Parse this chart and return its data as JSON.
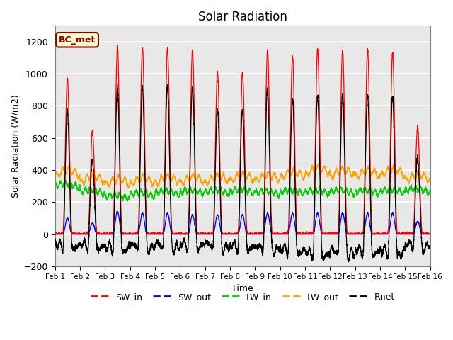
{
  "title": "Solar Radiation",
  "xlabel": "Time",
  "ylabel": "Solar Radiation (W/m2)",
  "ylim": [
    -200,
    1300
  ],
  "yticks": [
    -200,
    0,
    200,
    400,
    600,
    800,
    1000,
    1200
  ],
  "xlim": [
    0,
    15
  ],
  "xtick_labels": [
    "Feb 1",
    "Feb 2",
    "Feb 3",
    "Feb 4",
    "Feb 5",
    "Feb 6",
    "Feb 7",
    "Feb 8",
    "Feb 9",
    "Feb 10",
    "Feb 11",
    "Feb 12",
    "Feb 13",
    "Feb 14",
    "Feb 15",
    "Feb 16"
  ],
  "annotation_text": "BC_met",
  "annotation_color": "#8B0000",
  "annotation_bg": "#FFFACD",
  "colors": {
    "SW_in": "#FF0000",
    "SW_out": "#0000FF",
    "LW_in": "#00CC00",
    "LW_out": "#FFA500",
    "Rnet": "#000000"
  },
  "n_days": 15,
  "background_color": "#FFFFFF",
  "plot_bg_color": "#E8E8E8",
  "sw_peaks": [
    970,
    640,
    1170,
    1160,
    1155,
    1150,
    1010,
    1010,
    1150,
    1110,
    1150,
    1150,
    1150,
    1130,
    670
  ],
  "sw_out_peaks": [
    100,
    70,
    140,
    130,
    130,
    120,
    120,
    120,
    130,
    130,
    130,
    130,
    130,
    130,
    80
  ],
  "lw_in_base": [
    295,
    255,
    225,
    240,
    250,
    255,
    255,
    260,
    250,
    255,
    255,
    255,
    255,
    260,
    265
  ],
  "lw_out_base": [
    360,
    320,
    305,
    310,
    315,
    315,
    320,
    330,
    330,
    350,
    370,
    360,
    355,
    365,
    330
  ],
  "pts_per_day": 288
}
